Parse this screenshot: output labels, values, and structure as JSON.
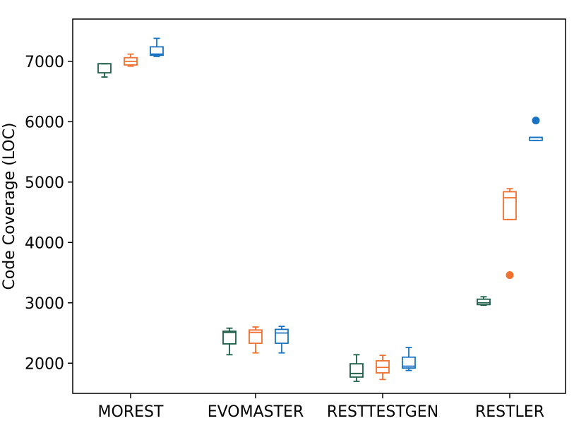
{
  "chart_data": {
    "type": "box",
    "title": "",
    "xlabel": "",
    "ylabel": "Code Coverage (LOC)",
    "ylim": [
      1500,
      7700
    ],
    "yticks": [
      2000,
      3000,
      4000,
      5000,
      6000,
      7000
    ],
    "ytick_labels": [
      "2000",
      "3000",
      "4000",
      "5000",
      "6000",
      "7000"
    ],
    "categories": [
      "MOREST",
      "EVOMASTER",
      "RESTTESTGEN",
      "RESTLER"
    ],
    "grid": false,
    "legend": "none",
    "series": [
      {
        "color": "#1b5e45",
        "boxes": [
          {
            "whisker_low": 6740,
            "q1": 6810,
            "median": 6960,
            "q3": 6960,
            "whisker_high": 6960,
            "outliers": []
          },
          {
            "whisker_low": 2140,
            "q1": 2320,
            "median": 2510,
            "q3": 2530,
            "whisker_high": 2580,
            "outliers": []
          },
          {
            "whisker_low": 1700,
            "q1": 1770,
            "median": 1830,
            "q3": 1990,
            "whisker_high": 2140,
            "outliers": []
          },
          {
            "whisker_low": 2960,
            "q1": 2970,
            "median": 3000,
            "q3": 3060,
            "whisker_high": 3100,
            "outliers": []
          }
        ]
      },
      {
        "color": "#f07030",
        "boxes": [
          {
            "whisker_low": 6920,
            "q1": 6940,
            "median": 7000,
            "q3": 7060,
            "whisker_high": 7120,
            "outliers": []
          },
          {
            "whisker_low": 2170,
            "q1": 2330,
            "median": 2510,
            "q3": 2550,
            "whisker_high": 2600,
            "outliers": []
          },
          {
            "whisker_low": 1730,
            "q1": 1840,
            "median": 1930,
            "q3": 2040,
            "whisker_high": 2130,
            "outliers": []
          },
          {
            "whisker_low": 4380,
            "q1": 4380,
            "median": 4740,
            "q3": 4840,
            "whisker_high": 4890,
            "outliers": [
              3460
            ]
          }
        ]
      },
      {
        "color": "#1a73c2",
        "boxes": [
          {
            "whisker_low": 7080,
            "q1": 7100,
            "median": 7120,
            "q3": 7240,
            "whisker_high": 7380,
            "outliers": []
          },
          {
            "whisker_low": 2170,
            "q1": 2330,
            "median": 2500,
            "q3": 2560,
            "whisker_high": 2610,
            "outliers": []
          },
          {
            "whisker_low": 1880,
            "q1": 1920,
            "median": 1950,
            "q3": 2100,
            "whisker_high": 2260,
            "outliers": []
          },
          {
            "whisker_low": 5690,
            "q1": 5690,
            "median": 5740,
            "q3": 5740,
            "whisker_high": 5740,
            "outliers": [
              6020
            ]
          }
        ]
      }
    ]
  }
}
